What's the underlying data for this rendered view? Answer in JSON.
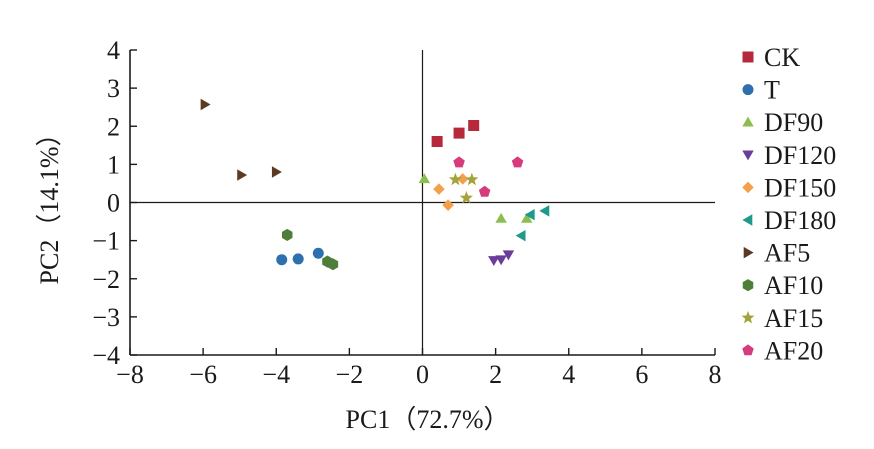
{
  "chart_data": {
    "type": "scatter",
    "title": "",
    "xlabel": "PC1（72.7%）",
    "ylabel": "PC2（14.1%）",
    "xlim": [
      -8,
      8
    ],
    "ylim": [
      -4,
      4
    ],
    "xticks": [
      -8,
      -6,
      -4,
      -2,
      0,
      2,
      4,
      6,
      8
    ],
    "yticks": [
      -4,
      -3,
      -2,
      -1,
      0,
      1,
      2,
      3,
      4
    ],
    "xtick_labels": [
      "−8",
      "−6",
      "−4",
      "−2",
      "0",
      "2",
      "4",
      "6",
      "8"
    ],
    "ytick_labels": [
      "−4",
      "−3",
      "−2",
      "−1",
      "0",
      "1",
      "2",
      "3",
      "4"
    ],
    "grid": false,
    "legend_position": "right",
    "series": [
      {
        "name": "CK",
        "marker": "square",
        "color": "#b5293a",
        "points": [
          [
            0.4,
            1.6
          ],
          [
            1.0,
            1.82
          ],
          [
            1.4,
            2.02
          ]
        ]
      },
      {
        "name": "T",
        "marker": "circle",
        "color": "#2e6fae",
        "points": [
          [
            -3.85,
            -1.5
          ],
          [
            -3.4,
            -1.48
          ],
          [
            -2.85,
            -1.33
          ]
        ]
      },
      {
        "name": "DF90",
        "marker": "triangle-up",
        "color": "#8bbd4f",
        "points": [
          [
            0.05,
            0.62
          ],
          [
            2.15,
            -0.42
          ],
          [
            2.85,
            -0.42
          ]
        ]
      },
      {
        "name": "DF120",
        "marker": "triangle-down",
        "color": "#6a3d9a",
        "points": [
          [
            1.95,
            -1.52
          ],
          [
            2.15,
            -1.5
          ],
          [
            2.35,
            -1.37
          ]
        ]
      },
      {
        "name": "DF150",
        "marker": "diamond",
        "color": "#f4a04b",
        "points": [
          [
            0.45,
            0.35
          ],
          [
            0.7,
            -0.07
          ],
          [
            1.1,
            0.62
          ]
        ]
      },
      {
        "name": "DF180",
        "marker": "triangle-left",
        "color": "#1f9a8a",
        "points": [
          [
            2.7,
            -0.87
          ],
          [
            2.95,
            -0.32
          ],
          [
            3.35,
            -0.22
          ]
        ]
      },
      {
        "name": "AF5",
        "marker": "triangle-right",
        "color": "#5a3a22",
        "points": [
          [
            -5.95,
            2.57
          ],
          [
            -4.95,
            0.72
          ],
          [
            -4.0,
            0.8
          ]
        ]
      },
      {
        "name": "AF10",
        "marker": "hexagon",
        "color": "#4f7d3a",
        "points": [
          [
            -3.7,
            -0.85
          ],
          [
            -2.6,
            -1.55
          ],
          [
            -2.45,
            -1.62
          ]
        ]
      },
      {
        "name": "AF15",
        "marker": "star",
        "color": "#a3a33a",
        "points": [
          [
            0.9,
            0.6
          ],
          [
            1.2,
            0.12
          ],
          [
            1.35,
            0.6
          ]
        ]
      },
      {
        "name": "AF20",
        "marker": "pentagon",
        "color": "#d63b7d",
        "points": [
          [
            1.0,
            1.05
          ],
          [
            1.7,
            0.28
          ],
          [
            2.6,
            1.05
          ]
        ]
      }
    ]
  }
}
